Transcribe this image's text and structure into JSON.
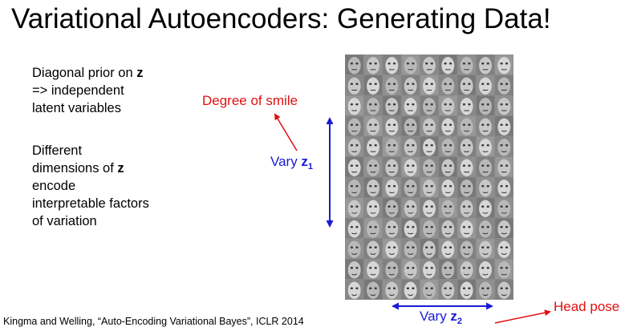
{
  "title": "Variational Autoencoders: Generating Data!",
  "block1": {
    "line1_prefix": "Diagonal prior on ",
    "line1_var": "z",
    "line2": "=> independent",
    "line3": "latent variables"
  },
  "block2": {
    "line1": "Different",
    "line2_prefix": "dimensions of ",
    "line2_var": "z",
    "line3": "encode",
    "line4": "interpretable factors",
    "line5": "of variation"
  },
  "annotations": {
    "smile": "Degree of smile",
    "vary1_prefix": "Vary ",
    "vary1_var": "z",
    "vary1_sub": "1",
    "vary2_prefix": "Vary ",
    "vary2_var": "z",
    "vary2_sub": "2",
    "head_pose": "Head pose"
  },
  "citation": "Kingma and Welling, “Auto-Encoding Variational Bayes”, ICLR 2014",
  "face_grid": {
    "rows": 12,
    "cols": 9
  },
  "colors": {
    "annotation_red": "#e01010",
    "annotation_blue": "#1a1ad8"
  }
}
